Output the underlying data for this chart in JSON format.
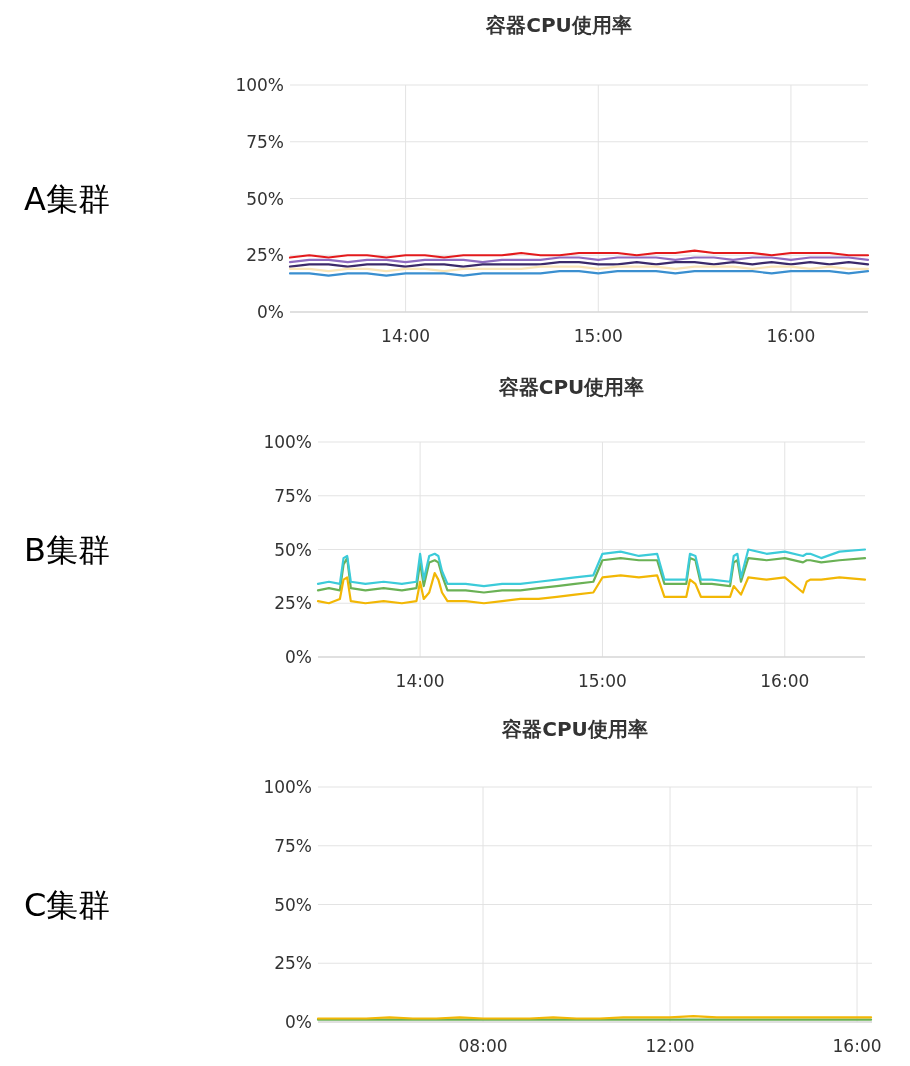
{
  "chart_data": [
    {
      "type": "line",
      "title": "容器CPU使用率",
      "annotations": [
        "A集群"
      ],
      "grid": true,
      "xlim": [
        13.4,
        16.4
      ],
      "ylim": [
        0,
        100
      ],
      "xticks": [
        {
          "value": 14,
          "label": "14:00"
        },
        {
          "value": 15,
          "label": "15:00"
        },
        {
          "value": 16,
          "label": "16:00"
        }
      ],
      "yticks": [
        {
          "value": 0,
          "label": "0%"
        },
        {
          "value": 25,
          "label": "25%"
        },
        {
          "value": 50,
          "label": "50%"
        },
        {
          "value": 75,
          "label": "75%"
        },
        {
          "value": 100,
          "label": "100%"
        }
      ],
      "x": [
        13.4,
        13.5,
        13.6,
        13.7,
        13.8,
        13.9,
        14.0,
        14.1,
        14.2,
        14.3,
        14.4,
        14.5,
        14.6,
        14.7,
        14.8,
        14.9,
        15.0,
        15.1,
        15.2,
        15.3,
        15.4,
        15.5,
        15.6,
        15.7,
        15.8,
        15.9,
        16.0,
        16.1,
        16.2,
        16.3,
        16.4
      ],
      "series": [
        {
          "color": "#e31a1c",
          "values": [
            24,
            25,
            24,
            25,
            25,
            24,
            25,
            25,
            24,
            25,
            25,
            25,
            26,
            25,
            25,
            26,
            26,
            26,
            25,
            26,
            26,
            27,
            26,
            26,
            26,
            25,
            26,
            26,
            26,
            25,
            25
          ]
        },
        {
          "color": "#8e6bbf",
          "values": [
            22,
            23,
            23,
            22,
            23,
            23,
            22,
            23,
            23,
            23,
            22,
            23,
            23,
            23,
            24,
            24,
            23,
            24,
            24,
            24,
            23,
            24,
            24,
            23,
            24,
            24,
            23,
            24,
            24,
            24,
            23
          ]
        },
        {
          "color": "#3b2a6b",
          "values": [
            20,
            21,
            21,
            20,
            21,
            21,
            20,
            21,
            21,
            20,
            21,
            21,
            21,
            21,
            22,
            22,
            21,
            21,
            22,
            21,
            22,
            22,
            21,
            22,
            21,
            22,
            21,
            22,
            21,
            22,
            21
          ]
        },
        {
          "color": "#fae5b8",
          "values": [
            19,
            19,
            18,
            19,
            19,
            18,
            19,
            19,
            18,
            19,
            19,
            19,
            19,
            20,
            20,
            20,
            19,
            20,
            20,
            20,
            19,
            20,
            20,
            20,
            19,
            20,
            20,
            19,
            20,
            19,
            19
          ]
        },
        {
          "color": "#3a8fd0",
          "values": [
            17,
            17,
            16,
            17,
            17,
            16,
            17,
            17,
            17,
            16,
            17,
            17,
            17,
            17,
            18,
            18,
            17,
            18,
            18,
            18,
            17,
            18,
            18,
            18,
            18,
            17,
            18,
            18,
            18,
            17,
            18
          ]
        }
      ]
    },
    {
      "type": "line",
      "title": "容器CPU使用率",
      "annotations": [
        "B集群"
      ],
      "grid": true,
      "xlim": [
        13.44,
        16.44
      ],
      "ylim": [
        0,
        100
      ],
      "xticks": [
        {
          "value": 14,
          "label": "14:00"
        },
        {
          "value": 15,
          "label": "15:00"
        },
        {
          "value": 16,
          "label": "16:00"
        }
      ],
      "yticks": [
        {
          "value": 0,
          "label": "0%"
        },
        {
          "value": 25,
          "label": "25%"
        },
        {
          "value": 50,
          "label": "50%"
        },
        {
          "value": 75,
          "label": "75%"
        },
        {
          "value": 100,
          "label": "100%"
        }
      ],
      "x": [
        13.44,
        13.5,
        13.56,
        13.58,
        13.6,
        13.62,
        13.7,
        13.8,
        13.9,
        13.98,
        14.0,
        14.02,
        14.05,
        14.08,
        14.1,
        14.12,
        14.15,
        14.25,
        14.35,
        14.45,
        14.55,
        14.65,
        14.75,
        14.85,
        14.95,
        15.0,
        15.1,
        15.2,
        15.3,
        15.34,
        15.4,
        15.46,
        15.48,
        15.51,
        15.54,
        15.6,
        15.7,
        15.72,
        15.74,
        15.76,
        15.8,
        15.9,
        16.0,
        16.1,
        16.12,
        16.14,
        16.2,
        16.3,
        16.44
      ],
      "series": [
        {
          "color": "#6ab155",
          "values": [
            31,
            32,
            31,
            43,
            46,
            32,
            31,
            32,
            31,
            32,
            44,
            33,
            44,
            45,
            44,
            38,
            31,
            31,
            30,
            31,
            31,
            32,
            33,
            34,
            35,
            45,
            46,
            45,
            45,
            34,
            34,
            34,
            46,
            45,
            34,
            34,
            33,
            44,
            45,
            35,
            46,
            45,
            46,
            44,
            45,
            45,
            44,
            45,
            46
          ]
        },
        {
          "color": "#f2b705",
          "values": [
            26,
            25,
            27,
            36,
            37,
            26,
            25,
            26,
            25,
            26,
            35,
            27,
            30,
            39,
            36,
            30,
            26,
            26,
            25,
            26,
            27,
            27,
            28,
            29,
            30,
            37,
            38,
            37,
            38,
            28,
            28,
            28,
            36,
            34,
            28,
            28,
            28,
            33,
            31,
            29,
            37,
            36,
            37,
            30,
            35,
            36,
            36,
            37,
            36
          ]
        },
        {
          "color": "#3ccbd9",
          "values": [
            34,
            35,
            34,
            46,
            47,
            35,
            34,
            35,
            34,
            35,
            48,
            36,
            47,
            48,
            47,
            40,
            34,
            34,
            33,
            34,
            34,
            35,
            36,
            37,
            38,
            48,
            49,
            47,
            48,
            36,
            36,
            36,
            48,
            47,
            36,
            36,
            35,
            47,
            48,
            37,
            50,
            48,
            49,
            47,
            48,
            48,
            46,
            49,
            50
          ]
        }
      ]
    },
    {
      "type": "line",
      "title": "容器CPU使用率",
      "annotations": [
        "C集群"
      ],
      "grid": true,
      "xlim": [
        4.47,
        16.32
      ],
      "ylim": [
        0,
        100
      ],
      "xticks": [
        {
          "value": 8,
          "label": "08:00"
        },
        {
          "value": 12,
          "label": "12:00"
        },
        {
          "value": 16,
          "label": "16:00"
        }
      ],
      "yticks": [
        {
          "value": 0,
          "label": "0%"
        },
        {
          "value": 25,
          "label": "25%"
        },
        {
          "value": 50,
          "label": "50%"
        },
        {
          "value": 75,
          "label": "75%"
        },
        {
          "value": 100,
          "label": "100%"
        }
      ],
      "x": [
        4.47,
        5,
        5.5,
        6,
        6.5,
        7,
        7.5,
        8,
        8.5,
        9,
        9.5,
        10,
        10.5,
        11,
        11.5,
        12,
        12.5,
        13,
        13.5,
        14,
        14.5,
        15,
        15.5,
        16,
        16.3
      ],
      "series": [
        {
          "color": "#6ab155",
          "values": [
            1,
            1,
            1,
            1,
            1,
            1,
            1,
            1,
            1,
            1,
            1,
            1,
            1,
            1,
            1,
            1,
            1,
            1,
            1,
            1,
            1,
            1,
            1,
            1,
            1
          ]
        },
        {
          "color": "#f2b705",
          "values": [
            1.5,
            1.5,
            1.5,
            2,
            1.5,
            1.5,
            2,
            1.5,
            1.5,
            1.5,
            2,
            1.5,
            1.5,
            2,
            2,
            2,
            2.5,
            2,
            2,
            2,
            2,
            2,
            2,
            2,
            2
          ]
        }
      ]
    }
  ]
}
